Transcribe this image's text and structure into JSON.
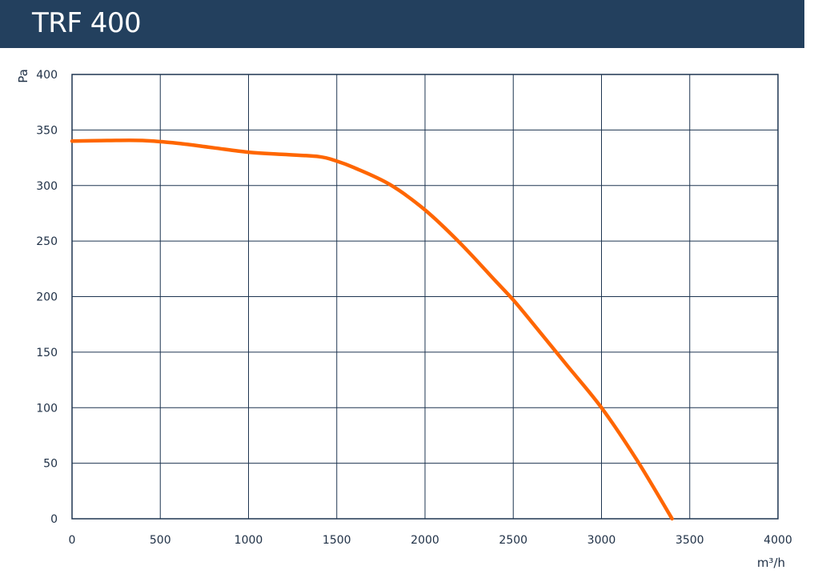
{
  "header": {
    "title": "TRF 400"
  },
  "chart_data": {
    "type": "line",
    "title": "TRF 400",
    "xlabel": "m³/h",
    "ylabel": "Pa",
    "xlim": [
      0,
      4000
    ],
    "ylim": [
      0,
      400
    ],
    "x_ticks": [
      "0",
      "500",
      "1000",
      "1500",
      "2000",
      "2500",
      "3000",
      "3500",
      "4000"
    ],
    "y_ticks": [
      "0",
      "50",
      "100",
      "150",
      "200",
      "250",
      "300",
      "350",
      "400"
    ],
    "grid": true,
    "series": [
      {
        "color": "#ff6600",
        "x": [
          0,
          200,
          400,
          600,
          800,
          1000,
          1200,
          1400,
          1500,
          1600,
          1800,
          2000,
          2200,
          2400,
          2500,
          2600,
          2800,
          3000,
          3200,
          3400
        ],
        "y": [
          340,
          340.5,
          340.5,
          338,
          334,
          330,
          328,
          326,
          322,
          316,
          301,
          278,
          248,
          214,
          197,
          178,
          139,
          100,
          53,
          0
        ]
      }
    ]
  }
}
